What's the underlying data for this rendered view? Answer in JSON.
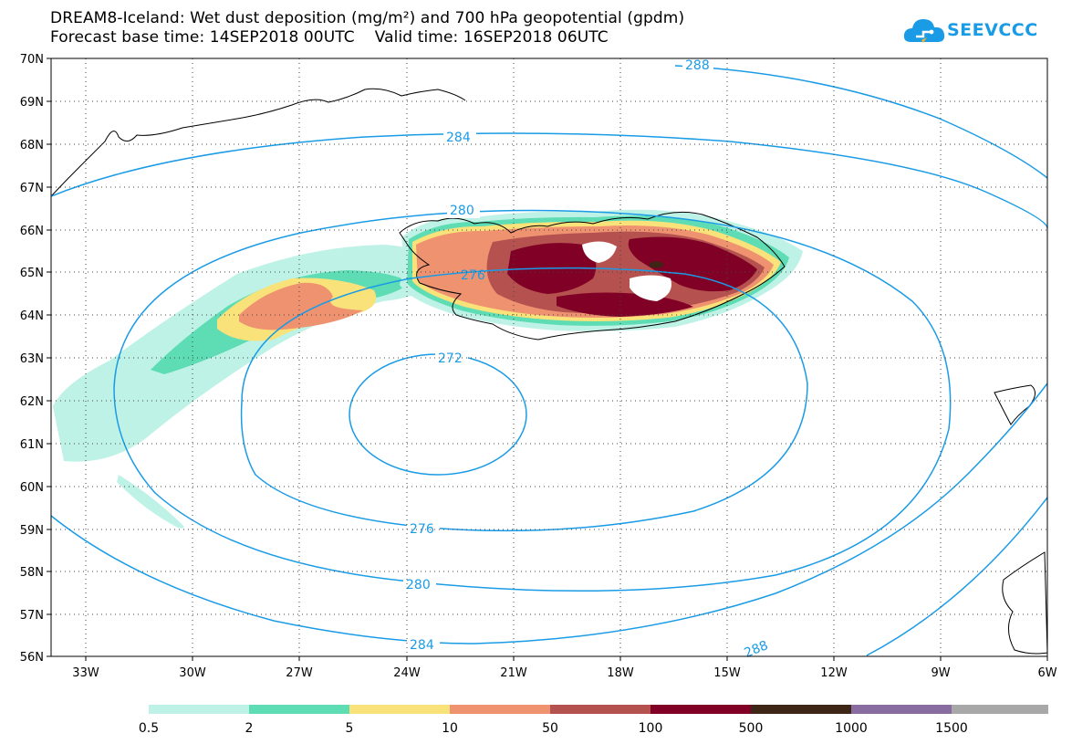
{
  "header": {
    "title_line1": "DREAM8-Iceland: Wet dust deposition (mg/m²) and 700 hPa geopotential (gpdm)",
    "title_line2": "Forecast base time: 14SEP2018 00UTC    Valid time: 16SEP2018 06UTC"
  },
  "logo": {
    "text": "SEEVCCC",
    "icon": "cloud-icon",
    "color": "#1a9be6"
  },
  "map": {
    "lat_labels": [
      "70N",
      "69N",
      "68N",
      "67N",
      "66N",
      "65N",
      "64N",
      "63N",
      "62N",
      "61N",
      "60N",
      "59N",
      "58N",
      "57N",
      "56N"
    ],
    "lon_labels": [
      "33W",
      "30W",
      "27W",
      "24W",
      "21W",
      "18W",
      "15W",
      "12W",
      "9W",
      "6W"
    ],
    "contour_color": "#1a9be6",
    "contour_labels": [
      "288",
      "284",
      "280",
      "276",
      "272",
      "276",
      "280",
      "284",
      "288"
    ]
  },
  "legend": {
    "colors": [
      "#bff2e6",
      "#5edcb4",
      "#f9e27a",
      "#ee9270",
      "#b55250",
      "#800026",
      "#3d2615",
      "#8a6da0",
      "#a8a8a8"
    ],
    "labels": [
      "0.5",
      "2",
      "5",
      "10",
      "50",
      "100",
      "500",
      "1000",
      "1500"
    ]
  }
}
